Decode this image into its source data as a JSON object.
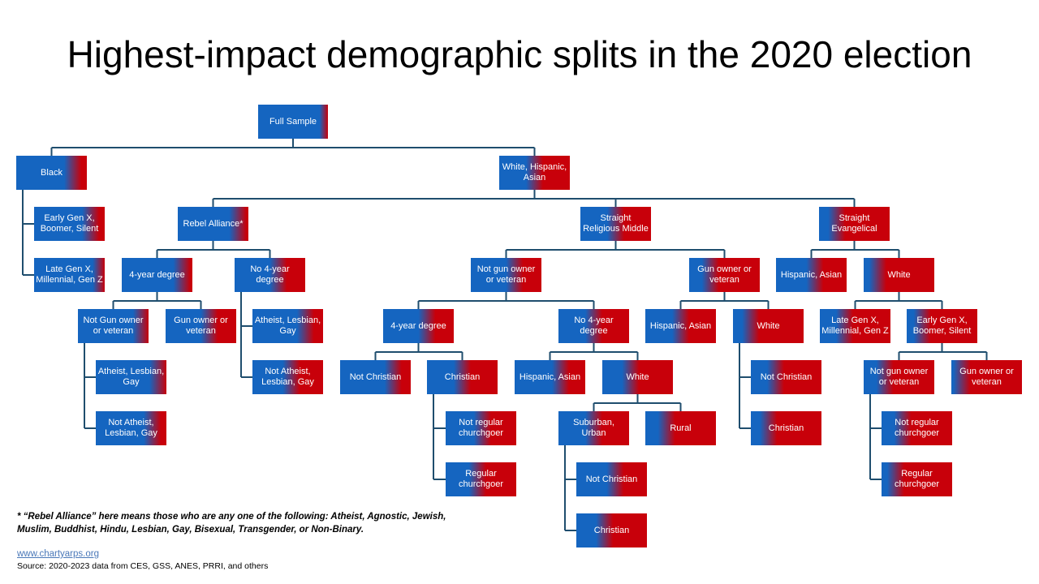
{
  "title": "Highest-impact demographic splits in the 2020 election",
  "colors": {
    "blue": "#1565c0",
    "red": "#c8000a",
    "line": "#1f4e6e"
  },
  "footnote": "* “Rebel Alliance” here means those who are any one of the following: Atheist, Agnostic, Jewish, Muslim, Buddhist, Hindu, Lesbian, Gay, Bisexual, Transgender, or Non-Binary.",
  "link_text": "www.chartyarps.org",
  "source": "Source: 2020-2023 data from CES, GSS, ANES, PRRI, and others",
  "nodes": [
    {
      "id": "full",
      "label": "Full Sample",
      "blue": 100
    },
    {
      "id": "black",
      "label": "Black",
      "blue": 80
    },
    {
      "id": "whiteasian",
      "label": "White, Hispanic, Asian",
      "blue": 50
    },
    {
      "id": "b_old",
      "label": "Early Gen X, Boomer, Silent",
      "blue": 80
    },
    {
      "id": "b_young",
      "label": "Late Gen X, Millennial, Gen Z",
      "blue": 95
    },
    {
      "id": "rebel",
      "label": "Rebel Alliance*",
      "blue": 85
    },
    {
      "id": "srm",
      "label": "Straight Religious Middle",
      "blue": 50
    },
    {
      "id": "se",
      "label": "Straight Evangelical",
      "blue": 25
    },
    {
      "id": "rb_4y",
      "label": "4-year degree",
      "blue": 85
    },
    {
      "id": "rb_no4",
      "label": "No 4-year degree",
      "blue": 62
    },
    {
      "id": "rb_4y_nogun",
      "label": "Not Gun owner or veteran",
      "blue": 90
    },
    {
      "id": "rb_4y_gun",
      "label": "Gun owner or veteran",
      "blue": 62
    },
    {
      "id": "rb_4y_ng_ath",
      "label": "Atheist, Lesbian, Gay",
      "blue": 88
    },
    {
      "id": "rb_4y_ng_nath",
      "label": "Not Atheist, Lesbian, Gay",
      "blue": 80
    },
    {
      "id": "rb_no4_ath",
      "label": "Atheist, Lesbian, Gay",
      "blue": 75
    },
    {
      "id": "rb_no4_nath",
      "label": "Not Atheist, Lesbian, Gay",
      "blue": 55
    },
    {
      "id": "srm_nogun",
      "label": "Not gun owner or veteran",
      "blue": 62
    },
    {
      "id": "srm_gun",
      "label": "Gun owner or veteran",
      "blue": 30
    },
    {
      "id": "srm_ng_4y",
      "label": "4-year degree",
      "blue": 62
    },
    {
      "id": "srm_ng_no4",
      "label": "No 4-year degree",
      "blue": 50
    },
    {
      "id": "srm_ng_4y_nochr",
      "label": "Not Christian",
      "blue": 75
    },
    {
      "id": "srm_ng_4y_chr",
      "label": "Christian",
      "blue": 50
    },
    {
      "id": "srm_ng_4y_chr_nreg",
      "label": "Not regular churchgoer",
      "blue": 52
    },
    {
      "id": "srm_ng_4y_chr_reg",
      "label": "Regular churchgoer",
      "blue": 45
    },
    {
      "id": "srm_ng_no4_hisp",
      "label": "Hispanic, Asian",
      "blue": 65
    },
    {
      "id": "srm_ng_no4_white",
      "label": "White",
      "blue": 40
    },
    {
      "id": "srm_w_sub",
      "label": "Suburban, Urban",
      "blue": 50
    },
    {
      "id": "srm_w_rural",
      "label": "Rural",
      "blue": 30
    },
    {
      "id": "srm_w_sub_nochr",
      "label": "Not Christian",
      "blue": 55
    },
    {
      "id": "srm_w_sub_chr",
      "label": "Christian",
      "blue": 40
    },
    {
      "id": "srm_gun_hisp",
      "label": "Hispanic, Asian",
      "blue": 50
    },
    {
      "id": "srm_gun_white",
      "label": "White",
      "blue": 25
    },
    {
      "id": "srm_gun_w_nochr",
      "label": "Not Christian",
      "blue": 35
    },
    {
      "id": "srm_gun_w_chr",
      "label": "Christian",
      "blue": 25
    },
    {
      "id": "se_hisp",
      "label": "Hispanic, Asian",
      "blue": 55
    },
    {
      "id": "se_white",
      "label": "White",
      "blue": 20
    },
    {
      "id": "se_w_young",
      "label": "Late Gen X, Millennial, Gen Z",
      "blue": 35
    },
    {
      "id": "se_w_old",
      "label": "Early Gen X, Boomer, Silent",
      "blue": 22
    },
    {
      "id": "se_wo_nogun",
      "label": "Not gun owner or veteran",
      "blue": 30
    },
    {
      "id": "se_wo_gun",
      "label": "Gun owner or veteran",
      "blue": 15
    },
    {
      "id": "se_wo_ng_nreg",
      "label": "Not regular churchgoer",
      "blue": 30
    },
    {
      "id": "se_wo_ng_reg",
      "label": "Regular churchgoer",
      "blue": 20
    }
  ]
}
